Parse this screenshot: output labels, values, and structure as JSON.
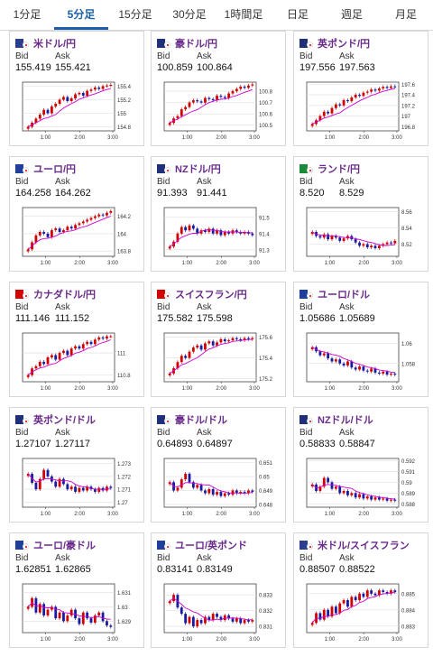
{
  "tabs": [
    {
      "label": "1分足",
      "active": false
    },
    {
      "label": "5分足",
      "active": true
    },
    {
      "label": "15分足",
      "active": false
    },
    {
      "label": "30分足",
      "active": false
    },
    {
      "label": "1時間足",
      "active": false
    },
    {
      "label": "日足",
      "active": false
    },
    {
      "label": "週足",
      "active": false
    },
    {
      "label": "月足",
      "active": false
    }
  ],
  "bid_label": "Bid",
  "ask_label": "Ask",
  "x_ticks": [
    "1:00",
    "2:00",
    "3:00"
  ],
  "colors": {
    "up": "#d10000",
    "down": "#1a1aa0",
    "ma": "#cc00cc",
    "accent": "#1a5fa8",
    "pair": "#6a2a8a"
  },
  "pairs": [
    {
      "name": "米ドル/円",
      "bid": "155.419",
      "ask": "155.421",
      "flag": "us",
      "ticks": [
        "155.4",
        "155.2",
        "155",
        "154.8"
      ],
      "ymin": 154.74,
      "ymax": 155.46,
      "series": [
        154.8,
        154.86,
        154.92,
        154.98,
        155.05,
        155.0,
        155.1,
        155.14,
        155.2,
        155.24,
        155.18,
        155.22,
        155.28,
        155.3,
        155.26,
        155.33,
        155.35,
        155.38,
        155.36,
        155.4,
        155.41,
        155.42
      ]
    },
    {
      "name": "豪ドル/円",
      "bid": "100.859",
      "ask": "100.864",
      "flag": "au",
      "ticks": [
        "100.8",
        "100.7",
        "100.6",
        "100.5"
      ],
      "ymin": 100.45,
      "ymax": 100.88,
      "series": [
        100.52,
        100.56,
        100.58,
        100.64,
        100.66,
        100.7,
        100.72,
        100.71,
        100.7,
        100.74,
        100.73,
        100.72,
        100.76,
        100.75,
        100.74,
        100.78,
        100.8,
        100.82,
        100.84,
        100.83,
        100.85,
        100.86
      ]
    },
    {
      "name": "英ポンド/円",
      "bid": "197.556",
      "ask": "197.563",
      "flag": "gb",
      "ticks": [
        "197.6",
        "197.4",
        "197.2",
        "197",
        "196.8"
      ],
      "ymin": 196.72,
      "ymax": 197.64,
      "series": [
        196.85,
        196.92,
        197.0,
        197.08,
        197.05,
        197.15,
        197.22,
        197.2,
        197.3,
        197.28,
        197.35,
        197.4,
        197.38,
        197.44,
        197.46,
        197.5,
        197.48,
        197.52,
        197.55,
        197.53,
        197.56,
        197.55
      ]
    },
    {
      "name": "ユーロ/円",
      "bid": "164.258",
      "ask": "164.262",
      "flag": "eu",
      "ticks": [
        "164.2",
        "164",
        "163.8"
      ],
      "ymin": 163.74,
      "ymax": 164.3,
      "series": [
        163.82,
        163.9,
        163.98,
        164.02,
        164.0,
        163.96,
        164.04,
        164.06,
        164.02,
        164.04,
        164.08,
        164.06,
        164.1,
        164.12,
        164.14,
        164.16,
        164.18,
        164.2,
        164.22,
        164.21,
        164.24,
        164.26
      ]
    },
    {
      "name": "NZドル/円",
      "bid": "91.393",
      "ask": "91.441",
      "flag": "nz",
      "ticks": [
        "91.5",
        "91.4",
        "91.3"
      ],
      "ymin": 91.26,
      "ymax": 91.56,
      "series": [
        91.32,
        91.35,
        91.4,
        91.44,
        91.42,
        91.45,
        91.43,
        91.4,
        91.42,
        91.41,
        91.43,
        91.4,
        91.42,
        91.39,
        91.41,
        91.4,
        91.42,
        91.41,
        91.4,
        91.41,
        91.4,
        91.39
      ]
    },
    {
      "name": "ランド/円",
      "bid": "8.520",
      "ask": "8.529",
      "flag": "za",
      "ticks": [
        "8.56",
        "8.54",
        "8.52"
      ],
      "ymin": 8.505,
      "ymax": 8.565,
      "series": [
        8.535,
        8.53,
        8.528,
        8.532,
        8.526,
        8.53,
        8.528,
        8.524,
        8.527,
        8.53,
        8.526,
        8.522,
        8.518,
        8.52,
        8.516,
        8.518,
        8.515,
        8.518,
        8.52,
        8.522,
        8.521,
        8.524
      ]
    },
    {
      "name": "カナダドル/円",
      "bid": "111.146",
      "ask": "111.152",
      "flag": "ca",
      "ticks": [
        "111",
        "110.8"
      ],
      "ymin": 110.74,
      "ymax": 111.18,
      "series": [
        110.8,
        110.86,
        110.88,
        110.92,
        110.9,
        110.96,
        110.98,
        110.94,
        111.0,
        111.02,
        110.98,
        111.04,
        111.06,
        111.04,
        111.08,
        111.1,
        111.08,
        111.12,
        111.14,
        111.13,
        111.15,
        111.15
      ]
    },
    {
      "name": "スイスフラン/円",
      "bid": "175.582",
      "ask": "175.598",
      "flag": "ch",
      "ticks": [
        "175.6",
        "175.4",
        "175.2"
      ],
      "ymin": 175.17,
      "ymax": 175.64,
      "series": [
        175.25,
        175.3,
        175.36,
        175.42,
        175.4,
        175.46,
        175.5,
        175.52,
        175.48,
        175.54,
        175.56,
        175.52,
        175.55,
        175.58,
        175.56,
        175.57,
        175.59,
        175.58,
        175.57,
        175.59,
        175.58,
        175.59
      ]
    },
    {
      "name": "ユーロ/ドル",
      "bid": "1.05686",
      "ask": "1.05689",
      "flag": "eu",
      "ticks": [
        "1.06",
        "1.058"
      ],
      "ymin": 1.0562,
      "ymax": 1.061,
      "series": [
        1.0596,
        1.0592,
        1.0588,
        1.059,
        1.0585,
        1.0582,
        1.0584,
        1.058,
        1.0578,
        1.0582,
        1.0576,
        1.0574,
        1.0577,
        1.0573,
        1.0572,
        1.0575,
        1.0571,
        1.057,
        1.0572,
        1.0569,
        1.057,
        1.0569
      ]
    },
    {
      "name": "英ポンド/ドル",
      "bid": "1.27107",
      "ask": "1.27117",
      "flag": "gb",
      "ticks": [
        "1.273",
        "1.272",
        "1.271",
        "1.27"
      ],
      "ymin": 1.2696,
      "ymax": 1.2734,
      "series": [
        1.2722,
        1.2715,
        1.271,
        1.2718,
        1.2725,
        1.272,
        1.2716,
        1.2712,
        1.2718,
        1.2714,
        1.271,
        1.2712,
        1.2708,
        1.2711,
        1.2709,
        1.2712,
        1.271,
        1.2708,
        1.2711,
        1.2709,
        1.2712,
        1.2711
      ]
    },
    {
      "name": "豪ドル/ドル",
      "bid": "0.64893",
      "ask": "0.64897",
      "flag": "au",
      "ticks": [
        "0.651",
        "0.65",
        "0.649",
        "0.648"
      ],
      "ymin": 0.6478,
      "ymax": 0.6513,
      "series": [
        0.6496,
        0.649,
        0.6492,
        0.6498,
        0.6502,
        0.6496,
        0.6492,
        0.6494,
        0.649,
        0.6488,
        0.6491,
        0.6487,
        0.6489,
        0.6486,
        0.6488,
        0.6487,
        0.649,
        0.6488,
        0.6489,
        0.6488,
        0.649,
        0.6489
      ]
    },
    {
      "name": "NZドル/ドル",
      "bid": "0.58833",
      "ask": "0.58847",
      "flag": "nz",
      "ticks": [
        "0.592",
        "0.591",
        "0.59",
        "0.589",
        "0.588"
      ],
      "ymin": 0.5877,
      "ymax": 0.5922,
      "series": [
        0.5898,
        0.5892,
        0.5896,
        0.5904,
        0.59,
        0.5894,
        0.5896,
        0.589,
        0.5892,
        0.5888,
        0.589,
        0.5886,
        0.5889,
        0.5885,
        0.5887,
        0.5884,
        0.5886,
        0.5884,
        0.5885,
        0.5883,
        0.5884,
        0.5883
      ]
    },
    {
      "name": "ユーロ/豪ドル",
      "bid": "1.62851",
      "ask": "1.62865",
      "flag": "eu",
      "ticks": [
        "1.631",
        "1.63",
        "1.629"
      ],
      "ymin": 1.6282,
      "ymax": 1.6316,
      "series": [
        1.63,
        1.6306,
        1.6296,
        1.6302,
        1.6294,
        1.6298,
        1.63,
        1.6292,
        1.6296,
        1.629,
        1.6294,
        1.6298,
        1.6292,
        1.6288,
        1.6296,
        1.6292,
        1.6289,
        1.6294,
        1.6296,
        1.629,
        1.6287,
        1.6286
      ]
    },
    {
      "name": "ユーロ/英ポンド",
      "bid": "0.83141",
      "ask": "0.83149",
      "flag": "eu",
      "ticks": [
        "0.833",
        "0.832",
        "0.831"
      ],
      "ymin": 0.8306,
      "ymax": 0.8337,
      "series": [
        0.8326,
        0.833,
        0.8322,
        0.8318,
        0.8312,
        0.8316,
        0.831,
        0.8314,
        0.8312,
        0.8316,
        0.8314,
        0.8318,
        0.8316,
        0.8314,
        0.8317,
        0.8315,
        0.8313,
        0.8315,
        0.8312,
        0.8314,
        0.8313,
        0.8314
      ]
    },
    {
      "name": "米ドル/スイスフラン",
      "bid": "0.88507",
      "ask": "0.88522",
      "flag": "us",
      "ticks": [
        "0.885",
        "0.884",
        "0.883"
      ],
      "ymin": 0.8826,
      "ymax": 0.8856,
      "series": [
        0.8832,
        0.8838,
        0.8834,
        0.884,
        0.8836,
        0.8842,
        0.8838,
        0.8844,
        0.8846,
        0.8842,
        0.8848,
        0.8846,
        0.885,
        0.8848,
        0.8852,
        0.885,
        0.8849,
        0.8852,
        0.8851,
        0.885,
        0.8852,
        0.8851
      ]
    }
  ]
}
